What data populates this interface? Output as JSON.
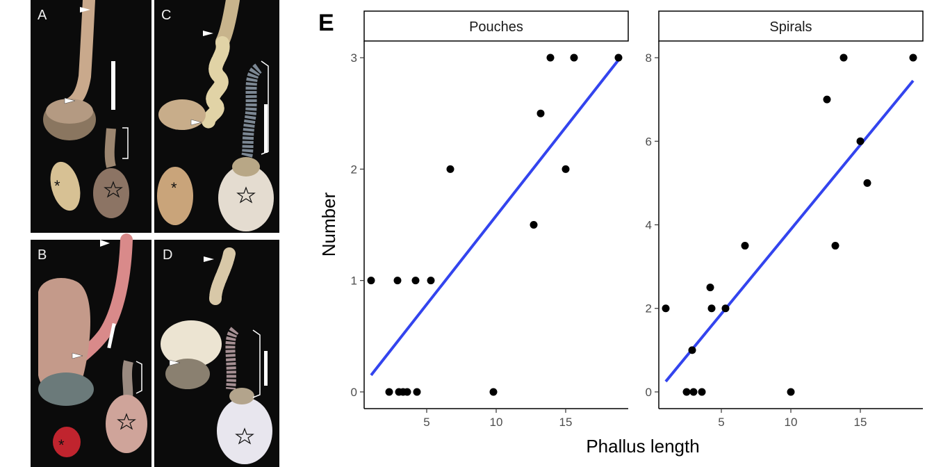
{
  "photo_panel_labels": [
    "A",
    "C",
    "B",
    "D"
  ],
  "chart_data": [
    {
      "type": "scatter",
      "panel_label": "E",
      "facet": "Pouches",
      "xlabel": "Phallus length",
      "ylabel": "Number",
      "xlim": [
        0.5,
        19.5
      ],
      "ylim": [
        -0.15,
        3.15
      ],
      "xticks": [
        5,
        10,
        15
      ],
      "yticks": [
        0,
        1,
        2,
        3
      ],
      "points": [
        [
          1.0,
          1
        ],
        [
          2.3,
          0
        ],
        [
          2.9,
          1
        ],
        [
          3.0,
          0
        ],
        [
          3.3,
          0
        ],
        [
          3.6,
          0
        ],
        [
          4.2,
          1
        ],
        [
          4.3,
          0
        ],
        [
          5.3,
          1
        ],
        [
          6.7,
          2
        ],
        [
          9.8,
          0
        ],
        [
          12.7,
          1.5
        ],
        [
          13.2,
          2.5
        ],
        [
          13.9,
          3
        ],
        [
          15.0,
          2
        ],
        [
          15.6,
          3
        ],
        [
          18.8,
          3
        ]
      ],
      "fit_line": {
        "x": [
          1.0,
          18.8
        ],
        "y": [
          0.15,
          2.98
        ],
        "color": "#3344ee"
      },
      "point_color": "#000000"
    },
    {
      "type": "scatter",
      "facet": "Spirals",
      "xlabel": "Phallus length",
      "ylabel": "Number",
      "xlim": [
        0.5,
        19.5
      ],
      "ylim": [
        -0.4,
        8.4
      ],
      "xticks": [
        5,
        10,
        15
      ],
      "yticks": [
        0,
        2,
        4,
        6,
        8
      ],
      "points": [
        [
          1.0,
          2
        ],
        [
          2.5,
          0
        ],
        [
          2.9,
          1
        ],
        [
          3.0,
          0
        ],
        [
          3.6,
          0
        ],
        [
          4.2,
          2.5
        ],
        [
          4.3,
          2
        ],
        [
          5.3,
          2
        ],
        [
          6.7,
          3.5
        ],
        [
          10.0,
          0
        ],
        [
          12.6,
          7
        ],
        [
          13.2,
          3.5
        ],
        [
          13.8,
          8
        ],
        [
          15.0,
          6
        ],
        [
          15.5,
          5
        ],
        [
          18.8,
          8
        ]
      ],
      "fit_line": {
        "x": [
          1.0,
          18.8
        ],
        "y": [
          0.25,
          7.45
        ],
        "color": "#3344ee"
      },
      "point_color": "#000000"
    }
  ]
}
